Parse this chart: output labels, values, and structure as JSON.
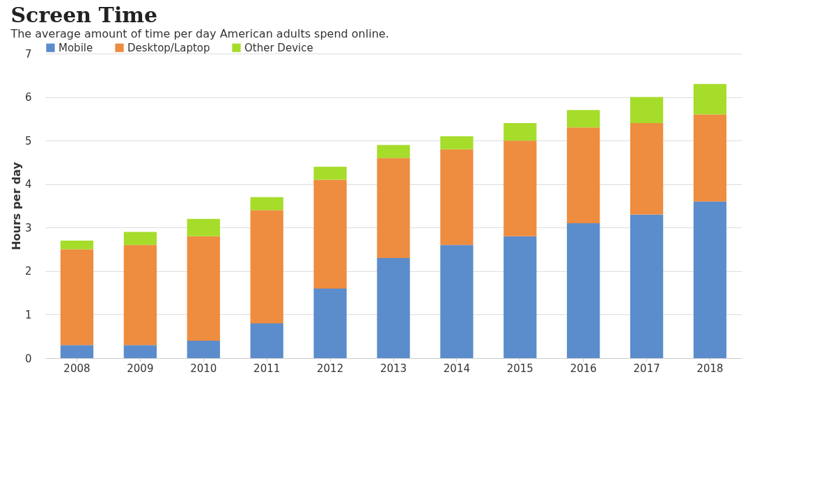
{
  "chart_data": {
    "type": "bar",
    "stacked": true,
    "title": "Screen Time",
    "subtitle": "The average amount of time per day American adults spend online.",
    "ylabel": "Hours per day",
    "categories": [
      "2008",
      "2009",
      "2010",
      "2011",
      "2012",
      "2013",
      "2014",
      "2015",
      "2016",
      "2017",
      "2018"
    ],
    "series": [
      {
        "name": "Mobile",
        "color": "#5b8ccb",
        "values": [
          0.3,
          0.3,
          0.4,
          0.8,
          1.6,
          2.3,
          2.6,
          2.8,
          3.1,
          3.3,
          3.6
        ]
      },
      {
        "name": "Desktop/Laptop",
        "color": "#ee8c3f",
        "values": [
          2.2,
          2.3,
          2.4,
          2.6,
          2.5,
          2.3,
          2.2,
          2.2,
          2.2,
          2.1,
          2.0
        ]
      },
      {
        "name": "Other Device",
        "color": "#a6dc2a",
        "values": [
          0.2,
          0.3,
          0.4,
          0.3,
          0.3,
          0.3,
          0.3,
          0.4,
          0.4,
          0.6,
          0.7
        ]
      }
    ],
    "ylim": [
      0,
      7
    ],
    "yticks": [
      0,
      1,
      2,
      3,
      4,
      5,
      6,
      7
    ],
    "grid": "y",
    "legend": "top"
  }
}
